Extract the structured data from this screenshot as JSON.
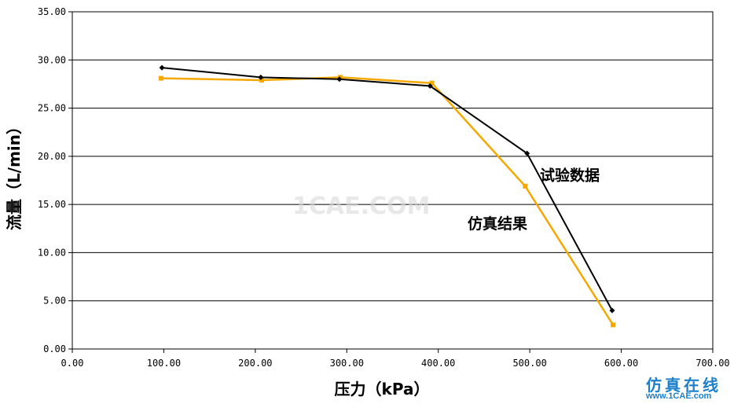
{
  "chart_data": {
    "type": "line",
    "xlabel": "压力（kPa）",
    "ylabel": "流量（L/min）",
    "xlim": [
      0,
      700
    ],
    "ylim": [
      0,
      35
    ],
    "x_ticks": [
      "0.00",
      "100.00",
      "200.00",
      "300.00",
      "400.00",
      "500.00",
      "600.00",
      "700.00"
    ],
    "y_ticks": [
      "0.00",
      "5.00",
      "10.00",
      "15.00",
      "20.00",
      "25.00",
      "30.00",
      "35.00"
    ],
    "grid": "horizontal",
    "series": [
      {
        "name": "试验数据",
        "color": "#000000",
        "marker": "diamond",
        "x": [
          98,
          206,
          292,
          391,
          497,
          590
        ],
        "y": [
          29.2,
          28.2,
          28.0,
          27.3,
          20.3,
          4.0
        ]
      },
      {
        "name": "仿真结果",
        "color": "#f5a800",
        "marker": "square",
        "x": [
          97,
          207,
          293,
          393,
          495,
          591
        ],
        "y": [
          28.1,
          27.9,
          28.2,
          27.6,
          16.9,
          2.5
        ]
      }
    ],
    "annotations": [
      {
        "text": "试验数据",
        "x": 511,
        "y": 17.5
      },
      {
        "text": "仿真结果",
        "x": 432,
        "y": 12.5
      }
    ]
  },
  "watermark": "1CAE.COM",
  "logo": {
    "cn": "仿真在线",
    "url": "www.1CAE.com"
  }
}
